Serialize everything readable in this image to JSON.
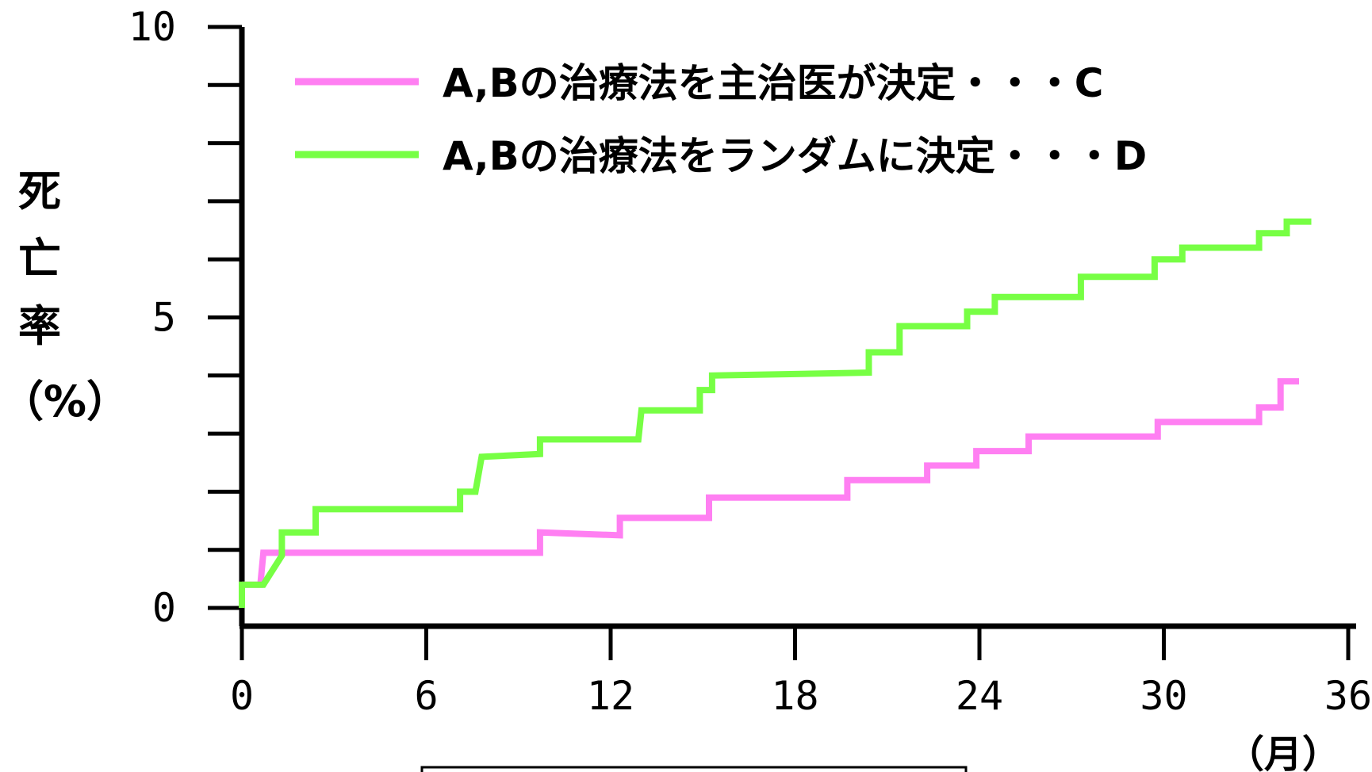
{
  "chart_data": {
    "type": "line",
    "ylabel": "死亡率（%）",
    "ylabel_lines": [
      "死",
      "亡",
      "率",
      "（%）"
    ],
    "xunit": "（月）",
    "xlim": [
      0,
      36
    ],
    "ylim": [
      0,
      10
    ],
    "x_ticks": [
      0,
      6,
      12,
      18,
      24,
      30,
      36
    ],
    "x_tick_labels": [
      "0",
      "6",
      "12",
      "18",
      "24",
      "30",
      "36"
    ],
    "y_ticks_labeled": [
      0,
      5,
      10
    ],
    "y_tick_labels": [
      "0",
      "5",
      "10"
    ],
    "y_ticks_minor": [
      1,
      2,
      3,
      4,
      6,
      7,
      8,
      9
    ],
    "legend_position": "top-right",
    "grid": false,
    "series": [
      {
        "name": "A,Bの治療法を主治医が決定・・・C",
        "color": "#ff7ff2",
        "step": true,
        "points": [
          [
            0,
            0.4
          ],
          [
            0.6,
            0.4
          ],
          [
            0.7,
            0.95
          ],
          [
            9.7,
            0.95
          ],
          [
            9.7,
            1.3
          ],
          [
            12.3,
            1.25
          ],
          [
            12.3,
            1.55
          ],
          [
            15.2,
            1.55
          ],
          [
            15.2,
            1.9
          ],
          [
            19.7,
            1.9
          ],
          [
            19.7,
            2.2
          ],
          [
            22.3,
            2.2
          ],
          [
            22.3,
            2.45
          ],
          [
            23.9,
            2.45
          ],
          [
            23.9,
            2.7
          ],
          [
            25.6,
            2.7
          ],
          [
            25.6,
            2.95
          ],
          [
            29.8,
            2.95
          ],
          [
            29.8,
            3.2
          ],
          [
            33.1,
            3.2
          ],
          [
            33.1,
            3.45
          ],
          [
            33.8,
            3.45
          ],
          [
            33.8,
            3.9
          ],
          [
            34.4,
            3.9
          ]
        ]
      },
      {
        "name": "A,Bの治療法をランダムに決定・・・D",
        "color": "#77ff44",
        "step": true,
        "points": [
          [
            0,
            0
          ],
          [
            0,
            0.4
          ],
          [
            0.7,
            0.4
          ],
          [
            1.3,
            0.9
          ],
          [
            1.3,
            1.3
          ],
          [
            2.4,
            1.3
          ],
          [
            2.4,
            1.7
          ],
          [
            7.1,
            1.7
          ],
          [
            7.1,
            2.0
          ],
          [
            7.6,
            2.0
          ],
          [
            7.8,
            2.6
          ],
          [
            9.7,
            2.65
          ],
          [
            9.7,
            2.9
          ],
          [
            12.9,
            2.9
          ],
          [
            13.0,
            3.4
          ],
          [
            14.9,
            3.4
          ],
          [
            14.9,
            3.75
          ],
          [
            15.3,
            3.75
          ],
          [
            15.3,
            4.0
          ],
          [
            20.4,
            4.05
          ],
          [
            20.4,
            4.4
          ],
          [
            21.4,
            4.4
          ],
          [
            21.4,
            4.85
          ],
          [
            23.6,
            4.85
          ],
          [
            23.6,
            5.1
          ],
          [
            24.5,
            5.1
          ],
          [
            24.5,
            5.35
          ],
          [
            27.3,
            5.35
          ],
          [
            27.3,
            5.7
          ],
          [
            29.7,
            5.7
          ],
          [
            29.7,
            6.0
          ],
          [
            30.6,
            6.0
          ],
          [
            30.6,
            6.2
          ],
          [
            33.1,
            6.2
          ],
          [
            33.1,
            6.45
          ],
          [
            34.0,
            6.45
          ],
          [
            34.0,
            6.65
          ],
          [
            34.8,
            6.65
          ]
        ]
      }
    ]
  }
}
